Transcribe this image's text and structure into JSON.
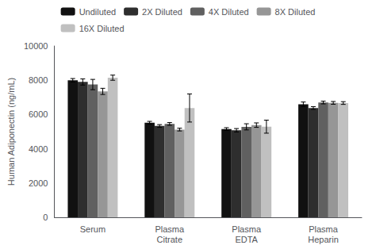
{
  "chart_data": {
    "type": "bar",
    "ylabel": "Human Adiponectin (ng/mL)",
    "categories": [
      "Serum",
      "Plasma\nCitrate",
      "Plasma\nEDTA",
      "Plasma\nHeparin"
    ],
    "series": [
      {
        "name": "Undiluted",
        "color": "#111111",
        "values": [
          8000,
          5520,
          5150,
          6600
        ],
        "errors": [
          100,
          80,
          80,
          130
        ]
      },
      {
        "name": "2X Diluted",
        "color": "#2e2e2e",
        "values": [
          7900,
          5330,
          5080,
          6380
        ],
        "errors": [
          180,
          80,
          100,
          80
        ]
      },
      {
        "name": "4X Diluted",
        "color": "#606060",
        "values": [
          7750,
          5450,
          5280,
          6700
        ],
        "errors": [
          300,
          80,
          180,
          80
        ]
      },
      {
        "name": "8X Diluted",
        "color": "#969696",
        "values": [
          7350,
          5120,
          5380,
          6680
        ],
        "errors": [
          180,
          80,
          130,
          80
        ]
      },
      {
        "name": "16X Diluted",
        "color": "#c0c0c0",
        "values": [
          8150,
          6380,
          5290,
          6670
        ],
        "errors": [
          150,
          820,
          380,
          80
        ]
      }
    ],
    "ylim": [
      0,
      10000
    ],
    "yticks": [
      0,
      2000,
      4000,
      6000,
      8000,
      10000
    ],
    "grid": false,
    "legend": "top"
  }
}
